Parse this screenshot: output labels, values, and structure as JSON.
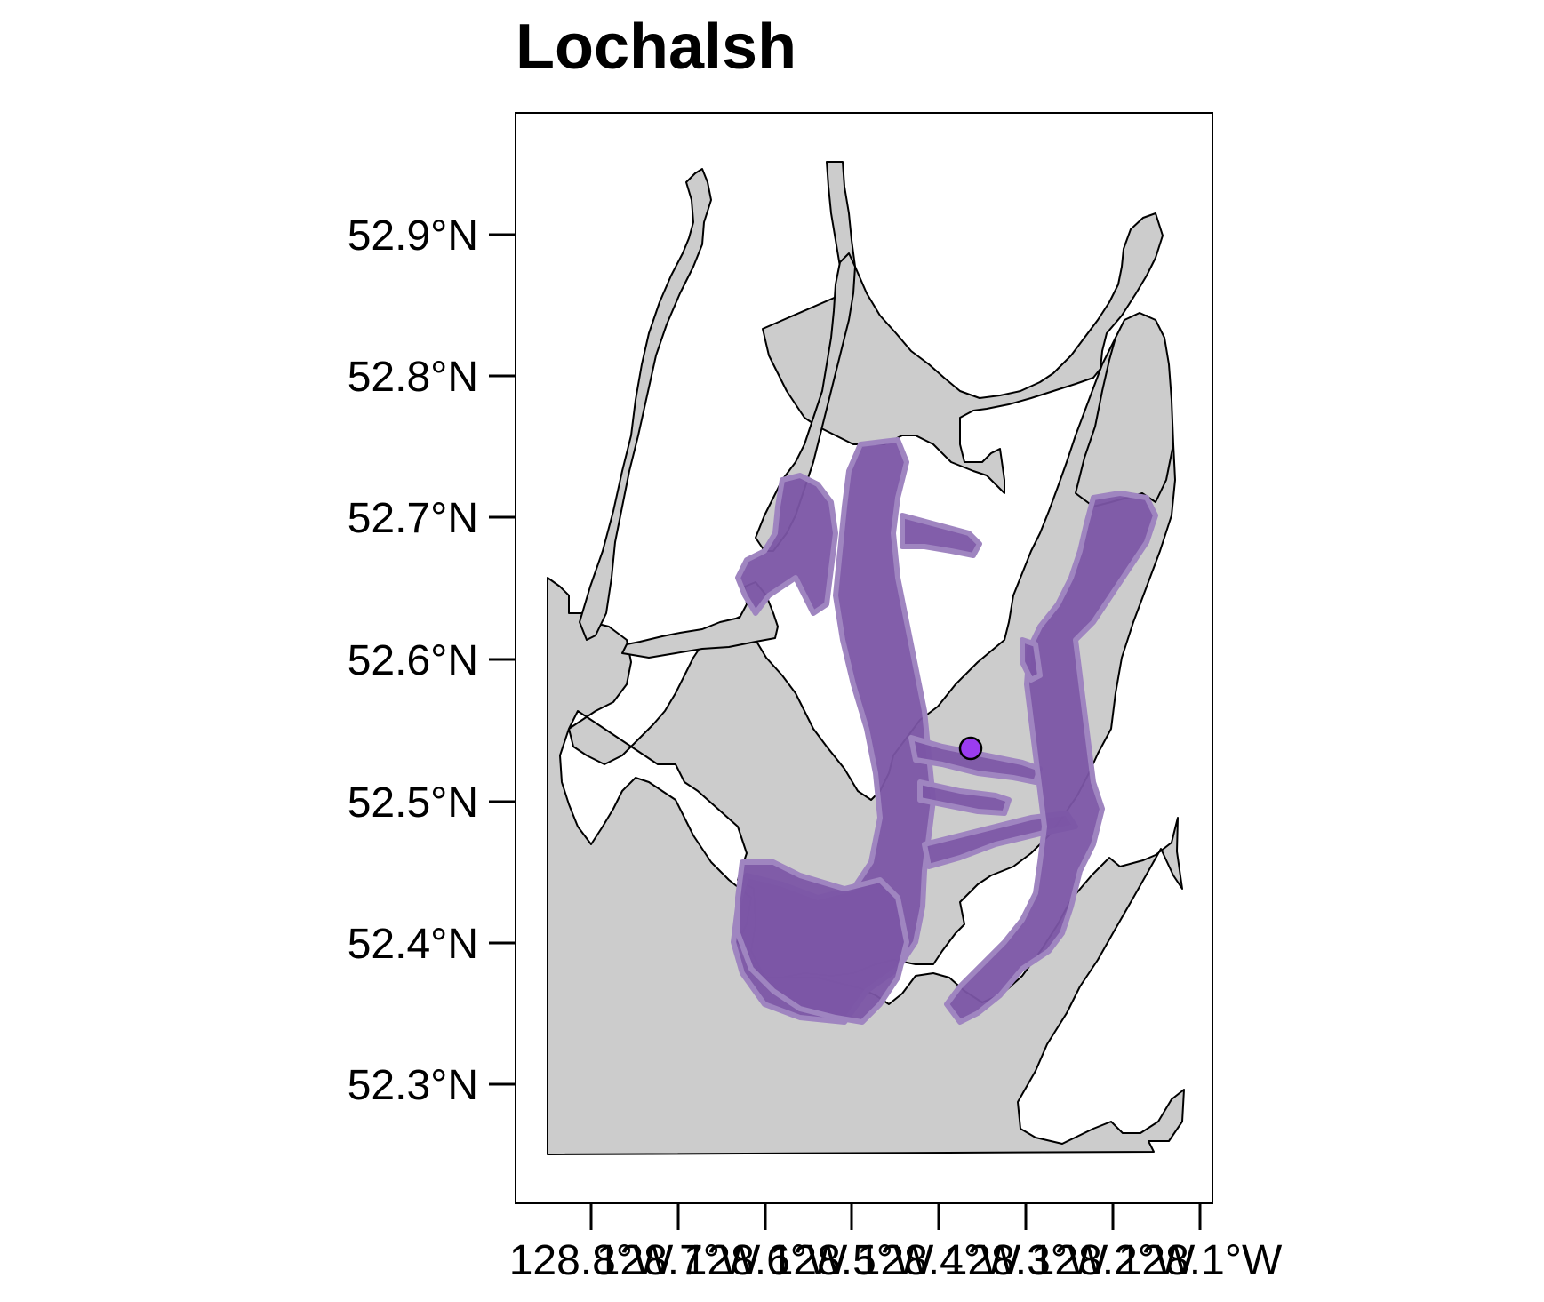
{
  "map": {
    "title": "Lochalsh",
    "lat_ticks": [
      "52.9°N",
      "52.8°N",
      "52.7°N",
      "52.6°N",
      "52.5°N",
      "52.4°N",
      "52.3°N"
    ],
    "lon_ticks": [
      "128.8°W",
      "128.7°W",
      "128.6°W",
      "128.5°W",
      "128.4°W",
      "128.3°W",
      "128.2°W",
      "128.1°W"
    ],
    "colors": {
      "land": "#ffffff",
      "water": "#cccccc",
      "coastline": "#000000",
      "habitat": "#7b55a5",
      "site_marker": "#9b3cf0"
    },
    "layers": [
      "water",
      "coastline",
      "habitat-buffer",
      "site-marker"
    ]
  }
}
